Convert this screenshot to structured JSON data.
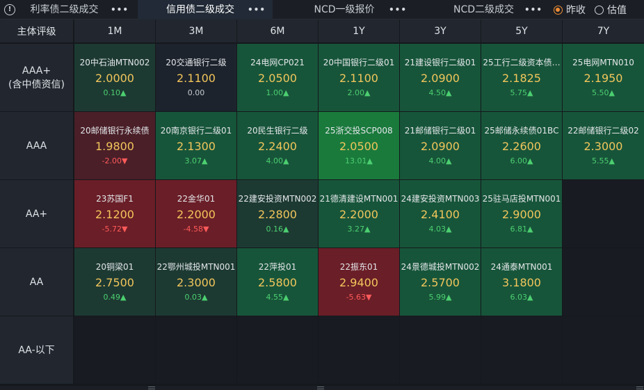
{
  "tabs": [
    {
      "label": "利率债二级成交",
      "active": false
    },
    {
      "label": "信用债二级成交",
      "active": true
    },
    {
      "label": "NCD一级报价",
      "active": false
    },
    {
      "label": "NCD二级成交",
      "active": false
    }
  ],
  "price_mode": {
    "options": [
      "昨收",
      "估值"
    ],
    "selected": "昨收"
  },
  "corner_label": "主体评级",
  "tenors": [
    "1M",
    "3M",
    "6M",
    "1Y",
    "3Y",
    "5Y",
    "7Y"
  ],
  "ratings": [
    {
      "label": "AAA+",
      "sub": "(含中债资信)"
    },
    {
      "label": "AAA",
      "sub": ""
    },
    {
      "label": "AA+",
      "sub": ""
    },
    {
      "label": "AA",
      "sub": ""
    },
    {
      "label": "AA-以下",
      "sub": ""
    }
  ],
  "colors": {
    "up_strong": "#1a7a3c",
    "up": "#17553a",
    "up_weak": "#1d3a32",
    "down": "#6a1e27",
    "neutral": "#1d232c",
    "empty": "#181c22",
    "yield_text": "#f2c65c",
    "up_text": "#4ccf70",
    "down_text": "#ff5a5a"
  },
  "cells": [
    [
      {
        "name": "20中石油MTN002",
        "yield": "2.0000",
        "change": "0.10▲",
        "dir": "up",
        "level": "weak"
      },
      {
        "name": "20交通银行二级",
        "yield": "2.1100",
        "change": "0.00",
        "dir": "flat",
        "level": "neutral"
      },
      {
        "name": "24电网CP021",
        "yield": "2.0500",
        "change": "1.00▲",
        "dir": "up",
        "level": "mid"
      },
      {
        "name": "20中国银行二级01",
        "yield": "2.1100",
        "change": "2.00▲",
        "dir": "up",
        "level": "mid"
      },
      {
        "name": "21建设银行二级01",
        "yield": "2.0900",
        "change": "4.50▲",
        "dir": "up",
        "level": "mid"
      },
      {
        "name": "25工行二级资本债…",
        "yield": "2.1825",
        "change": "5.75▲",
        "dir": "up",
        "level": "mid"
      },
      {
        "name": "25电网MTN010",
        "yield": "2.1950",
        "change": "5.50▲",
        "dir": "up",
        "level": "mid"
      }
    ],
    [
      {
        "name": "20邮储银行永续债",
        "yield": "1.9800",
        "change": "-2.00▼",
        "dir": "down",
        "level": "weakdown"
      },
      {
        "name": "20南京银行二级01",
        "yield": "2.1300",
        "change": "3.07▲",
        "dir": "up",
        "level": "mid"
      },
      {
        "name": "20民生银行二级",
        "yield": "2.2400",
        "change": "4.00▲",
        "dir": "up",
        "level": "mid"
      },
      {
        "name": "25浙交投SCP008",
        "yield": "2.0500",
        "change": "13.01▲",
        "dir": "up",
        "level": "strong"
      },
      {
        "name": "21邮储银行二级01",
        "yield": "2.0900",
        "change": "4.00▲",
        "dir": "up",
        "level": "mid"
      },
      {
        "name": "25邮储永续债01BC",
        "yield": "2.2600",
        "change": "6.00▲",
        "dir": "up",
        "level": "mid"
      },
      {
        "name": "22邮储银行二级02",
        "yield": "2.3000",
        "change": "5.55▲",
        "dir": "up",
        "level": "mid"
      }
    ],
    [
      {
        "name": "23苏国F1",
        "yield": "2.1200",
        "change": "-5.72▼",
        "dir": "down",
        "level": "down"
      },
      {
        "name": "22金华01",
        "yield": "2.2000",
        "change": "-4.58▼",
        "dir": "down",
        "level": "down"
      },
      {
        "name": "22建安投资MTN002",
        "yield": "2.2800",
        "change": "0.16▲",
        "dir": "up",
        "level": "weak"
      },
      {
        "name": "21德清建设MTN001",
        "yield": "2.2000",
        "change": "3.27▲",
        "dir": "up",
        "level": "mid"
      },
      {
        "name": "24建安投资MTN003",
        "yield": "2.4100",
        "change": "4.03▲",
        "dir": "up",
        "level": "mid"
      },
      {
        "name": "25驻马店投MTN001",
        "yield": "2.9000",
        "change": "6.81▲",
        "dir": "up",
        "level": "mid"
      },
      null
    ],
    [
      {
        "name": "20铜梁01",
        "yield": "2.7500",
        "change": "0.49▲",
        "dir": "up",
        "level": "weak"
      },
      {
        "name": "22鄂州城投MTN001",
        "yield": "2.3000",
        "change": "0.03▲",
        "dir": "up",
        "level": "weak"
      },
      {
        "name": "22萍投01",
        "yield": "2.5800",
        "change": "4.55▲",
        "dir": "up",
        "level": "mid"
      },
      {
        "name": "22振东01",
        "yield": "2.9400",
        "change": "-5.63▼",
        "dir": "down",
        "level": "down"
      },
      {
        "name": "24景德城投MTN002",
        "yield": "2.5700",
        "change": "5.99▲",
        "dir": "up",
        "level": "mid"
      },
      {
        "name": "24通泰MTN001",
        "yield": "3.1800",
        "change": "6.03▲",
        "dir": "up",
        "level": "mid"
      },
      null
    ],
    [
      null,
      null,
      null,
      null,
      null,
      null,
      null
    ]
  ]
}
